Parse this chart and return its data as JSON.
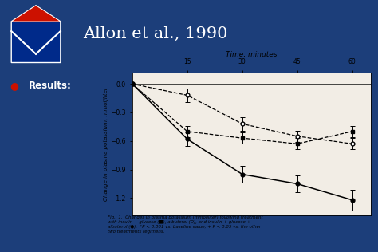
{
  "title": "Allon et al., 1990",
  "results_label": "Results:",
  "fig_caption": "Fig.  1.  Changes in plasma potassium (mmoliliter) following treatment\nwith insulin + glucose (■), albuterol (O), and insulin + glucose +\nalbuterol (●).  *P < 0.001 vs. baseline value; + P < 0.05 vs. the other\ntwo treatments regimens.",
  "xlabel": "Time, minutes",
  "ylabel": "Change in plasma potassium, mmol/liter",
  "x_ticks": [
    15,
    30,
    45,
    60
  ],
  "x_lim": [
    0,
    65
  ],
  "y_lim": [
    -1.38,
    0.12
  ],
  "y_ticks": [
    0,
    -0.3,
    -0.6,
    -0.9,
    -1.2
  ],
  "slide_bg": "#1c3e7a",
  "header_bg": "#2a5aaa",
  "chart_bg": "#f2ede5",
  "series": {
    "insulin_glucose": {
      "x": [
        0,
        15,
        30,
        45,
        60
      ],
      "y": [
        0,
        -0.5,
        -0.57,
        -0.63,
        -0.5
      ],
      "yerr": [
        0.0,
        0.06,
        0.06,
        0.06,
        0.06
      ],
      "marker": "s",
      "linestyle": "--",
      "filled": true
    },
    "albuterol": {
      "x": [
        0,
        15,
        30,
        45,
        60
      ],
      "y": [
        0,
        -0.12,
        -0.42,
        -0.55,
        -0.63
      ],
      "yerr": [
        0.0,
        0.07,
        0.07,
        0.06,
        0.06
      ],
      "marker": "o",
      "linestyle": "--",
      "filled": false
    },
    "insulin_glucose_albuterol": {
      "x": [
        0,
        15,
        30,
        45,
        60
      ],
      "y": [
        0,
        -0.58,
        -0.95,
        -1.05,
        -1.22
      ],
      "yerr": [
        0.0,
        0.07,
        0.09,
        0.09,
        0.11
      ],
      "marker": "o",
      "linestyle": "-",
      "filled": true
    }
  },
  "bullet_color": "#cc1100",
  "shield_blue": "#002a8a",
  "shield_red": "#cc1100"
}
